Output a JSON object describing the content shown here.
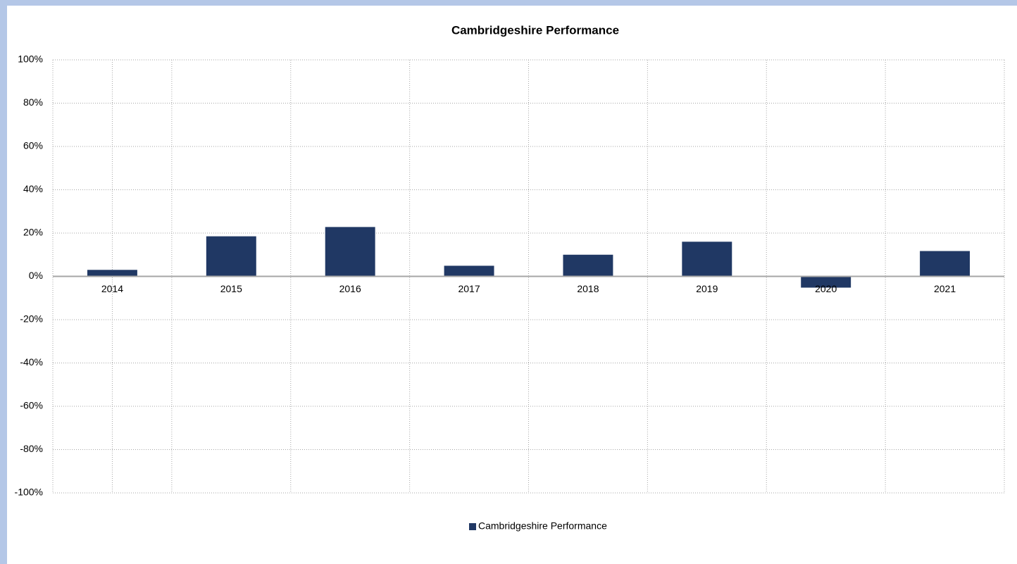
{
  "chart_data": {
    "type": "bar",
    "title": "Cambridgeshire Performance",
    "categories": [
      "2014",
      "2015",
      "2016",
      "2017",
      "2018",
      "2019",
      "2020",
      "2021"
    ],
    "series": [
      {
        "name": "Cambridgeshire Performance",
        "color": "#203864",
        "values": [
          3,
          18.5,
          22.8,
          4.9,
          10,
          16,
          -5.2,
          11.7
        ]
      }
    ],
    "ylim": [
      -100,
      100
    ],
    "yticks": [
      {
        "value": -100,
        "label": "-100%"
      },
      {
        "value": -80,
        "label": "-80%"
      },
      {
        "value": -60,
        "label": "-60%"
      },
      {
        "value": -40,
        "label": "-40%"
      },
      {
        "value": -20,
        "label": "-20%"
      },
      {
        "value": 0,
        "label": "0%"
      },
      {
        "value": 20,
        "label": "20%"
      },
      {
        "value": 40,
        "label": "40%"
      },
      {
        "value": 60,
        "label": "60%"
      },
      {
        "value": 80,
        "label": "80%"
      },
      {
        "value": 100,
        "label": "100%"
      }
    ],
    "grid": true,
    "legend": "bottom"
  }
}
